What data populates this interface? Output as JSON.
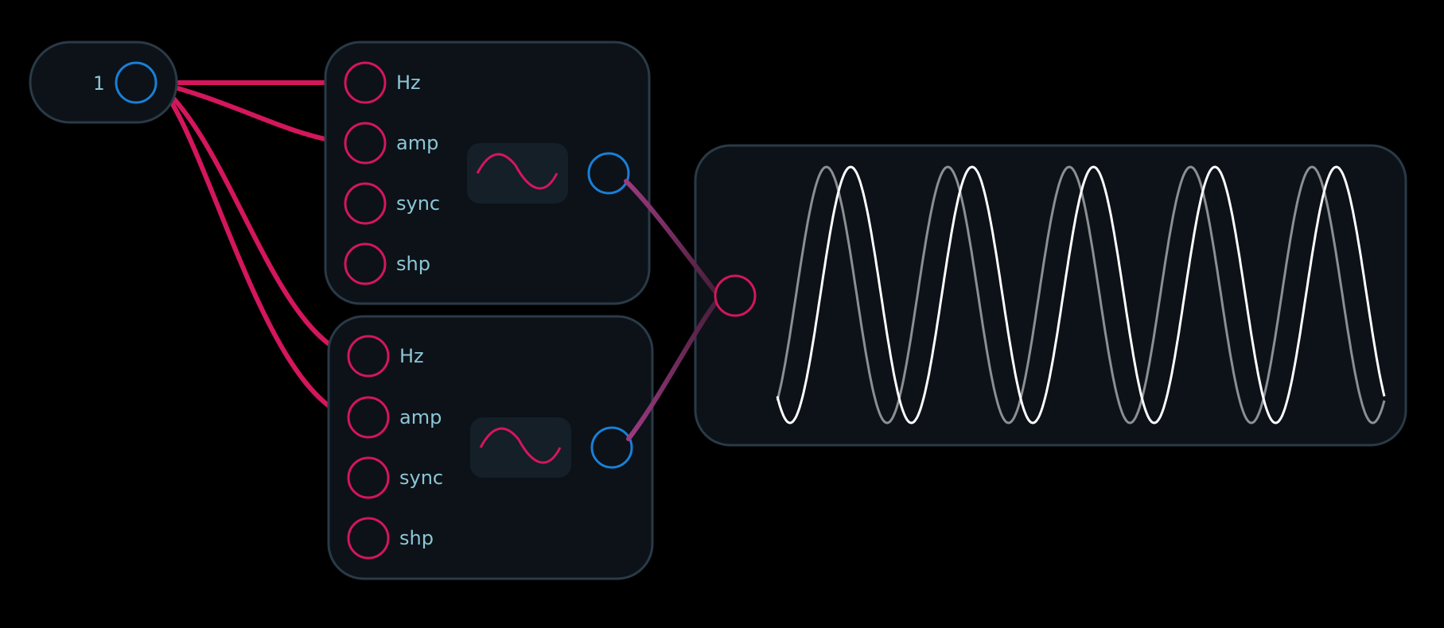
{
  "constant_node": {
    "value": "1"
  },
  "oscillators": [
    {
      "ports": [
        {
          "label": "Hz"
        },
        {
          "label": "amp"
        },
        {
          "label": "sync"
        },
        {
          "label": "shp"
        }
      ],
      "icon": "sine-wave-icon"
    },
    {
      "ports": [
        {
          "label": "Hz"
        },
        {
          "label": "amp"
        },
        {
          "label": "sync"
        },
        {
          "label": "shp"
        }
      ],
      "icon": "sine-wave-icon"
    }
  ],
  "scope": {
    "cycles": 5,
    "traces": [
      {
        "name": "",
        "color": "#8b8f93",
        "phase": 0.0
      },
      {
        "name": "",
        "color": "#ffffff",
        "phase": 0.2
      }
    ]
  },
  "colors": {
    "background": "#000000",
    "node": "#0c1218",
    "node_border": "#2a3a47",
    "input_port": "#d4165c",
    "output_port": "#1a7fd6",
    "audio_cable": "#9c3a80",
    "label": "#8cc6d6"
  }
}
